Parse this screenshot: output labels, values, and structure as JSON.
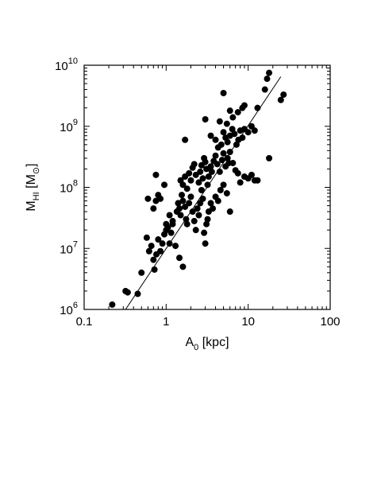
{
  "chart_data": {
    "type": "scatter",
    "title": "",
    "xlabel": {
      "main": "A",
      "sub": "0",
      "rest": " [kpc]"
    },
    "ylabel": {
      "main": "M",
      "sub": "HI",
      "rest": " [M",
      "sub2": "⊙",
      "close": "]"
    },
    "xscale": "log",
    "yscale": "log",
    "xlim": [
      0.1,
      100
    ],
    "ylim": [
      1000000,
      10000000000
    ],
    "grid": false,
    "x_ticks": [
      {
        "value": 0.1,
        "label": "0.1"
      },
      {
        "value": 1,
        "label": "1"
      },
      {
        "value": 10,
        "label": "10"
      },
      {
        "value": 100,
        "label": "100"
      }
    ],
    "y_ticks": [
      {
        "value": 1000000,
        "base": "10",
        "exp": "6"
      },
      {
        "value": 10000000,
        "base": "10",
        "exp": "7"
      },
      {
        "value": 100000000,
        "base": "10",
        "exp": "8"
      },
      {
        "value": 1000000000,
        "base": "10",
        "exp": "9"
      },
      {
        "value": 10000000000,
        "base": "10",
        "exp": "10"
      }
    ],
    "fit_line": {
      "x": [
        0.32,
        25
      ],
      "y": [
        1000000,
        6500000000
      ]
    },
    "series": [
      {
        "marker": "filled-circle",
        "color": "#000000",
        "points": [
          [
            0.22,
            1200000
          ],
          [
            0.32,
            2000000
          ],
          [
            0.34,
            1900000
          ],
          [
            0.45,
            1800000
          ],
          [
            0.5,
            4000000
          ],
          [
            0.58,
            15000000
          ],
          [
            0.62,
            9000000
          ],
          [
            0.66,
            11000000
          ],
          [
            0.7,
            6500000
          ],
          [
            0.72,
            4500000
          ],
          [
            0.76,
            8000000
          ],
          [
            0.8,
            14000000
          ],
          [
            0.85,
            9000000
          ],
          [
            0.9,
            12000000
          ],
          [
            0.95,
            17000000
          ],
          [
            1.0,
            20000000
          ],
          [
            1.05,
            22000000
          ],
          [
            1.1,
            12000000
          ],
          [
            1.15,
            18000000
          ],
          [
            1.2,
            25000000
          ],
          [
            1.3,
            11000000
          ],
          [
            1.45,
            7000000
          ],
          [
            1.6,
            5000000
          ],
          [
            0.7,
            45000000
          ],
          [
            0.75,
            60000000
          ],
          [
            0.8,
            75000000
          ],
          [
            0.85,
            65000000
          ],
          [
            0.6,
            65000000
          ],
          [
            0.75,
            160000000
          ],
          [
            0.95,
            110000000
          ],
          [
            1.0,
            25000000
          ],
          [
            1.1,
            35000000
          ],
          [
            1.2,
            28000000
          ],
          [
            1.35,
            40000000
          ],
          [
            1.4,
            55000000
          ],
          [
            1.45,
            45000000
          ],
          [
            1.5,
            35000000
          ],
          [
            1.55,
            75000000
          ],
          [
            1.6,
            60000000
          ],
          [
            1.7,
            48000000
          ],
          [
            1.75,
            30000000
          ],
          [
            1.8,
            25000000
          ],
          [
            1.9,
            55000000
          ],
          [
            2.0,
            70000000
          ],
          [
            2.1,
            40000000
          ],
          [
            2.2,
            28000000
          ],
          [
            2.3,
            20000000
          ],
          [
            2.4,
            45000000
          ],
          [
            2.5,
            35000000
          ],
          [
            2.6,
            55000000
          ],
          [
            2.7,
            90000000
          ],
          [
            2.8,
            65000000
          ],
          [
            2.9,
            18000000
          ],
          [
            3.0,
            12000000
          ],
          [
            3.1,
            25000000
          ],
          [
            3.2,
            30000000
          ],
          [
            3.3,
            40000000
          ],
          [
            3.5,
            55000000
          ],
          [
            3.7,
            45000000
          ],
          [
            4.0,
            70000000
          ],
          [
            4.3,
            60000000
          ],
          [
            4.6,
            90000000
          ],
          [
            5.0,
            110000000
          ],
          [
            5.5,
            80000000
          ],
          [
            6.0,
            40000000
          ],
          [
            1.5,
            130000000
          ],
          [
            1.6,
            110000000
          ],
          [
            1.7,
            150000000
          ],
          [
            1.8,
            95000000
          ],
          [
            1.9,
            170000000
          ],
          [
            2.0,
            130000000
          ],
          [
            2.1,
            210000000
          ],
          [
            2.2,
            240000000
          ],
          [
            2.3,
            160000000
          ],
          [
            2.5,
            120000000
          ],
          [
            2.6,
            180000000
          ],
          [
            2.7,
            230000000
          ],
          [
            2.8,
            140000000
          ],
          [
            2.9,
            300000000
          ],
          [
            3.0,
            260000000
          ],
          [
            3.1,
            200000000
          ],
          [
            3.2,
            110000000
          ],
          [
            3.3,
            150000000
          ],
          [
            3.5,
            220000000
          ],
          [
            3.6,
            180000000
          ],
          [
            3.8,
            270000000
          ],
          [
            4.0,
            330000000
          ],
          [
            4.2,
            240000000
          ],
          [
            4.5,
            180000000
          ],
          [
            4.8,
            280000000
          ],
          [
            5.0,
            360000000
          ],
          [
            5.3,
            220000000
          ],
          [
            5.6,
            300000000
          ],
          [
            6.0,
            380000000
          ],
          [
            6.5,
            250000000
          ],
          [
            7.0,
            190000000
          ],
          [
            7.5,
            170000000
          ],
          [
            8.0,
            120000000
          ],
          [
            9.0,
            150000000
          ],
          [
            10.0,
            140000000
          ],
          [
            11.0,
            160000000
          ],
          [
            12.0,
            130000000
          ],
          [
            13.0,
            130000000
          ],
          [
            18.0,
            300000000
          ],
          [
            1.7,
            600000000
          ],
          [
            3.0,
            1300000000
          ],
          [
            3.5,
            700000000
          ],
          [
            4.0,
            600000000
          ],
          [
            4.3,
            450000000
          ],
          [
            4.7,
            500000000
          ],
          [
            5.0,
            800000000
          ],
          [
            5.3,
            650000000
          ],
          [
            5.6,
            550000000
          ],
          [
            6.0,
            700000000
          ],
          [
            6.4,
            900000000
          ],
          [
            6.8,
            750000000
          ],
          [
            7.2,
            500000000
          ],
          [
            7.6,
            600000000
          ],
          [
            8.0,
            850000000
          ],
          [
            8.5,
            650000000
          ],
          [
            9.0,
            900000000
          ],
          [
            10.0,
            800000000
          ],
          [
            11.0,
            1000000000
          ],
          [
            12.0,
            850000000
          ],
          [
            5.5,
            1100000000
          ],
          [
            6.5,
            1400000000
          ],
          [
            7.5,
            1700000000
          ],
          [
            8.5,
            2000000000
          ],
          [
            5.0,
            3500000000
          ],
          [
            9.0,
            2200000000
          ],
          [
            13.0,
            2000000000
          ],
          [
            16.0,
            4000000000
          ],
          [
            17.0,
            6000000000
          ],
          [
            18.0,
            7500000000
          ],
          [
            25.0,
            2700000000
          ],
          [
            27.0,
            3300000000
          ],
          [
            6.0,
            1800000000
          ],
          [
            4.5,
            1200000000
          ],
          [
            5.8,
            250000000
          ]
        ]
      }
    ]
  }
}
